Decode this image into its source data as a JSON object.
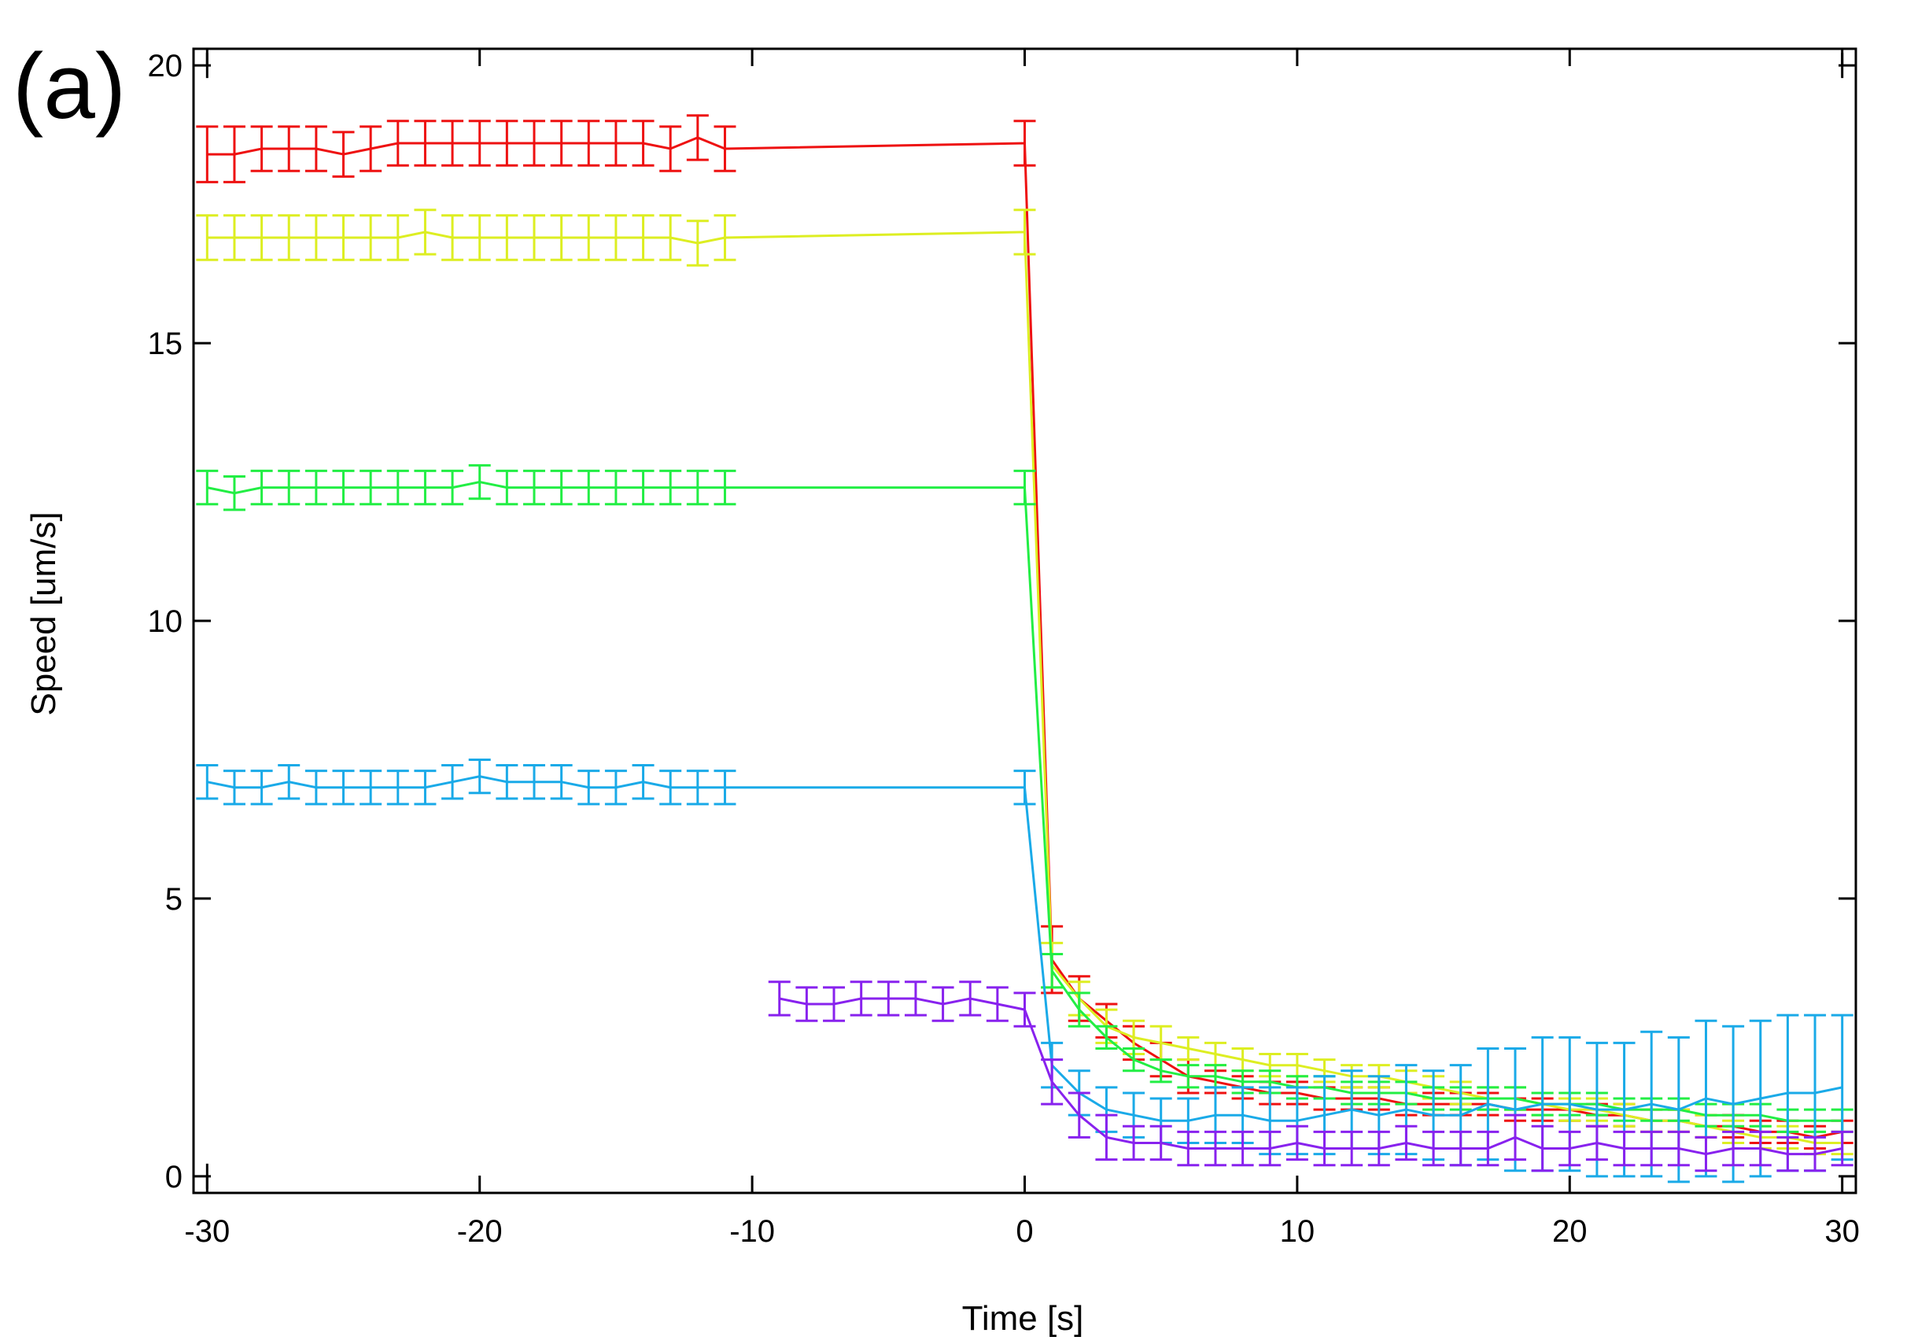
{
  "chart_data": {
    "type": "line",
    "panel_label": "(a)",
    "title": "",
    "xlabel": "Time [s]",
    "ylabel": "Speed [um/s]",
    "xlim": [
      -30.5,
      30.5
    ],
    "ylim": [
      -0.3,
      20.3
    ],
    "xticks": [
      -30,
      -20,
      -10,
      0,
      10,
      20,
      30
    ],
    "yticks": [
      0,
      5,
      10,
      15,
      20
    ],
    "xtick_labels": [
      "-30",
      "-20",
      "-10",
      "0",
      "10",
      "20",
      "30"
    ],
    "ytick_labels": [
      "0",
      "5",
      "10",
      "15",
      "20"
    ],
    "grid": false,
    "error_bars": true,
    "series": [
      {
        "name": "red",
        "color": "#ee1111",
        "x": [
          -30,
          -29,
          -28,
          -27,
          -26,
          -25,
          -24,
          -23,
          -22,
          -21,
          -20,
          -19,
          -18,
          -17,
          -16,
          -15,
          -14,
          -13,
          -12,
          -11,
          0,
          1,
          2,
          3,
          4,
          5,
          6,
          7,
          8,
          9,
          10,
          11,
          12,
          13,
          14,
          15,
          16,
          17,
          18,
          19,
          20,
          21,
          22,
          23,
          24,
          25,
          26,
          27,
          28,
          29,
          30
        ],
        "y": [
          18.4,
          18.4,
          18.5,
          18.5,
          18.5,
          18.4,
          18.5,
          18.6,
          18.6,
          18.6,
          18.6,
          18.6,
          18.6,
          18.6,
          18.6,
          18.6,
          18.6,
          18.5,
          18.7,
          18.5,
          18.6,
          3.9,
          3.2,
          2.8,
          2.4,
          2.1,
          1.8,
          1.7,
          1.6,
          1.5,
          1.5,
          1.4,
          1.4,
          1.4,
          1.3,
          1.3,
          1.3,
          1.3,
          1.2,
          1.2,
          1.2,
          1.1,
          1.1,
          1.0,
          1.0,
          0.9,
          0.9,
          0.8,
          0.8,
          0.7,
          0.8
        ],
        "err": [
          0.5,
          0.5,
          0.4,
          0.4,
          0.4,
          0.4,
          0.4,
          0.4,
          0.4,
          0.4,
          0.4,
          0.4,
          0.4,
          0.4,
          0.4,
          0.4,
          0.4,
          0.4,
          0.4,
          0.4,
          0.4,
          0.6,
          0.4,
          0.3,
          0.3,
          0.3,
          0.3,
          0.2,
          0.2,
          0.2,
          0.2,
          0.2,
          0.2,
          0.2,
          0.2,
          0.2,
          0.2,
          0.2,
          0.2,
          0.2,
          0.2,
          0.2,
          0.2,
          0.2,
          0.2,
          0.2,
          0.2,
          0.2,
          0.2,
          0.2,
          0.2
        ]
      },
      {
        "name": "yellow",
        "color": "#ddee22",
        "x": [
          -30,
          -29,
          -28,
          -27,
          -26,
          -25,
          -24,
          -23,
          -22,
          -21,
          -20,
          -19,
          -18,
          -17,
          -16,
          -15,
          -14,
          -13,
          -12,
          -11,
          0,
          1,
          2,
          3,
          4,
          5,
          6,
          7,
          8,
          9,
          10,
          11,
          12,
          13,
          14,
          15,
          16,
          17,
          18,
          19,
          20,
          21,
          22,
          23,
          24,
          25,
          26,
          27,
          28,
          29,
          30
        ],
        "y": [
          16.9,
          16.9,
          16.9,
          16.9,
          16.9,
          16.9,
          16.9,
          16.9,
          17.0,
          16.9,
          16.9,
          16.9,
          16.9,
          16.9,
          16.9,
          16.9,
          16.9,
          16.9,
          16.8,
          16.9,
          17.0,
          3.8,
          3.2,
          2.7,
          2.5,
          2.4,
          2.3,
          2.2,
          2.1,
          2.0,
          2.0,
          1.9,
          1.8,
          1.8,
          1.7,
          1.6,
          1.5,
          1.4,
          1.4,
          1.3,
          1.2,
          1.2,
          1.1,
          1.0,
          1.0,
          0.9,
          0.8,
          0.7,
          0.7,
          0.6,
          0.6
        ],
        "err": [
          0.4,
          0.4,
          0.4,
          0.4,
          0.4,
          0.4,
          0.4,
          0.4,
          0.4,
          0.4,
          0.4,
          0.4,
          0.4,
          0.4,
          0.4,
          0.4,
          0.4,
          0.4,
          0.4,
          0.4,
          0.4,
          0.4,
          0.3,
          0.3,
          0.3,
          0.3,
          0.2,
          0.2,
          0.2,
          0.2,
          0.2,
          0.2,
          0.2,
          0.2,
          0.2,
          0.2,
          0.2,
          0.2,
          0.2,
          0.2,
          0.2,
          0.2,
          0.2,
          0.2,
          0.2,
          0.2,
          0.2,
          0.2,
          0.2,
          0.2,
          0.2
        ]
      },
      {
        "name": "green",
        "color": "#22ee44",
        "x": [
          -30,
          -29,
          -28,
          -27,
          -26,
          -25,
          -24,
          -23,
          -22,
          -21,
          -20,
          -19,
          -18,
          -17,
          -16,
          -15,
          -14,
          -13,
          -12,
          -11,
          0,
          1,
          2,
          3,
          4,
          5,
          6,
          7,
          8,
          9,
          10,
          11,
          12,
          13,
          14,
          15,
          16,
          17,
          18,
          19,
          20,
          21,
          22,
          23,
          24,
          25,
          26,
          27,
          28,
          29,
          30
        ],
        "y": [
          12.4,
          12.3,
          12.4,
          12.4,
          12.4,
          12.4,
          12.4,
          12.4,
          12.4,
          12.4,
          12.5,
          12.4,
          12.4,
          12.4,
          12.4,
          12.4,
          12.4,
          12.4,
          12.4,
          12.4,
          12.4,
          3.7,
          3.0,
          2.5,
          2.1,
          1.9,
          1.8,
          1.8,
          1.7,
          1.7,
          1.6,
          1.6,
          1.5,
          1.5,
          1.5,
          1.4,
          1.4,
          1.4,
          1.4,
          1.3,
          1.3,
          1.3,
          1.2,
          1.2,
          1.2,
          1.1,
          1.1,
          1.1,
          1.0,
          1.0,
          1.0
        ],
        "err": [
          0.3,
          0.3,
          0.3,
          0.3,
          0.3,
          0.3,
          0.3,
          0.3,
          0.3,
          0.3,
          0.3,
          0.3,
          0.3,
          0.3,
          0.3,
          0.3,
          0.3,
          0.3,
          0.3,
          0.3,
          0.3,
          0.3,
          0.3,
          0.2,
          0.2,
          0.2,
          0.2,
          0.2,
          0.2,
          0.2,
          0.2,
          0.2,
          0.2,
          0.2,
          0.2,
          0.2,
          0.2,
          0.2,
          0.2,
          0.2,
          0.2,
          0.2,
          0.2,
          0.2,
          0.2,
          0.2,
          0.2,
          0.2,
          0.2,
          0.2,
          0.2
        ]
      },
      {
        "name": "blue",
        "color": "#1aaae8",
        "x": [
          -30,
          -29,
          -28,
          -27,
          -26,
          -25,
          -24,
          -23,
          -22,
          -21,
          -20,
          -19,
          -18,
          -17,
          -16,
          -15,
          -14,
          -13,
          -12,
          -11,
          0,
          1,
          2,
          3,
          4,
          5,
          6,
          7,
          8,
          9,
          10,
          11,
          12,
          13,
          14,
          15,
          16,
          17,
          18,
          19,
          20,
          21,
          22,
          23,
          24,
          25,
          26,
          27,
          28,
          29,
          30
        ],
        "y": [
          7.1,
          7.0,
          7.0,
          7.1,
          7.0,
          7.0,
          7.0,
          7.0,
          7.0,
          7.1,
          7.2,
          7.1,
          7.1,
          7.1,
          7.0,
          7.0,
          7.1,
          7.0,
          7.0,
          7.0,
          7.0,
          2.0,
          1.5,
          1.2,
          1.1,
          1.0,
          1.0,
          1.1,
          1.1,
          1.0,
          1.0,
          1.1,
          1.2,
          1.1,
          1.2,
          1.1,
          1.1,
          1.3,
          1.2,
          1.3,
          1.3,
          1.2,
          1.2,
          1.3,
          1.2,
          1.4,
          1.3,
          1.4,
          1.5,
          1.5,
          1.6
        ],
        "err": [
          0.3,
          0.3,
          0.3,
          0.3,
          0.3,
          0.3,
          0.3,
          0.3,
          0.3,
          0.3,
          0.3,
          0.3,
          0.3,
          0.3,
          0.3,
          0.3,
          0.3,
          0.3,
          0.3,
          0.3,
          0.3,
          0.4,
          0.4,
          0.4,
          0.4,
          0.4,
          0.4,
          0.5,
          0.5,
          0.6,
          0.6,
          0.7,
          0.7,
          0.7,
          0.8,
          0.8,
          0.9,
          1.0,
          1.1,
          1.2,
          1.2,
          1.2,
          1.2,
          1.3,
          1.3,
          1.4,
          1.4,
          1.4,
          1.4,
          1.4,
          1.3
        ]
      },
      {
        "name": "purple",
        "color": "#8822ee",
        "x": [
          -9,
          -8,
          -7,
          -6,
          -5,
          -4,
          -3,
          -2,
          -1,
          0,
          1,
          2,
          3,
          4,
          5,
          6,
          7,
          8,
          9,
          10,
          11,
          12,
          13,
          14,
          15,
          16,
          17,
          18,
          19,
          20,
          21,
          22,
          23,
          24,
          25,
          26,
          27,
          28,
          29,
          30
        ],
        "y": [
          3.2,
          3.1,
          3.1,
          3.2,
          3.2,
          3.2,
          3.1,
          3.2,
          3.1,
          3.0,
          1.7,
          1.1,
          0.7,
          0.6,
          0.6,
          0.5,
          0.5,
          0.5,
          0.5,
          0.6,
          0.5,
          0.5,
          0.5,
          0.6,
          0.5,
          0.5,
          0.5,
          0.7,
          0.5,
          0.5,
          0.6,
          0.5,
          0.5,
          0.5,
          0.4,
          0.5,
          0.5,
          0.4,
          0.4,
          0.5
        ],
        "err": [
          0.3,
          0.3,
          0.3,
          0.3,
          0.3,
          0.3,
          0.3,
          0.3,
          0.3,
          0.3,
          0.4,
          0.4,
          0.4,
          0.3,
          0.3,
          0.3,
          0.3,
          0.3,
          0.3,
          0.3,
          0.3,
          0.3,
          0.3,
          0.3,
          0.3,
          0.3,
          0.3,
          0.4,
          0.4,
          0.3,
          0.3,
          0.3,
          0.3,
          0.3,
          0.3,
          0.3,
          0.3,
          0.3,
          0.3,
          0.3
        ]
      }
    ]
  }
}
